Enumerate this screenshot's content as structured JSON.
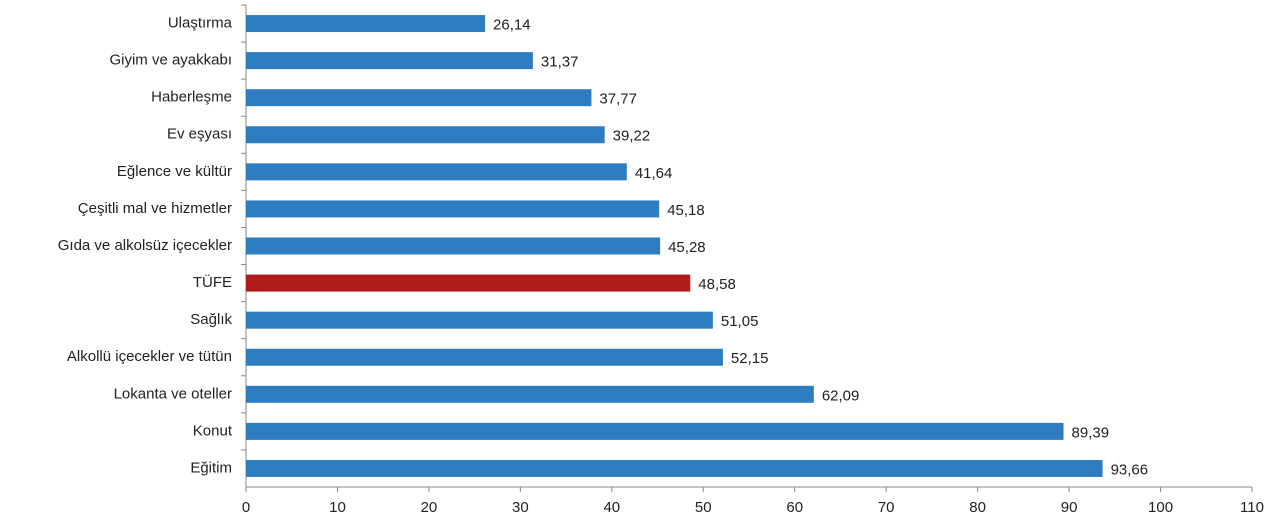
{
  "chart_data": {
    "type": "bar",
    "orientation": "horizontal",
    "categories": [
      "Ulaştırma",
      "Giyim ve ayakkabı",
      "Haberleşme",
      "Ev eşyası",
      "Eğlence ve kültür",
      "Çeşitli mal ve hizmetler",
      "Gıda ve alkolsüz içecekler",
      "TÜFE",
      "Sağlık",
      "Alkollü içecekler ve tütün",
      "Lokanta ve oteller",
      "Konut",
      "Eğitim"
    ],
    "values": [
      26.14,
      31.37,
      37.77,
      39.22,
      41.64,
      45.18,
      45.28,
      48.58,
      51.05,
      52.15,
      62.09,
      89.39,
      93.66
    ],
    "value_labels": [
      "26,14",
      "31,37",
      "37,77",
      "39,22",
      "41,64",
      "45,18",
      "45,28",
      "48,58",
      "51,05",
      "52,15",
      "62,09",
      "89,39",
      "93,66"
    ],
    "colors": [
      "#2e7dc1",
      "#2e7dc1",
      "#2e7dc1",
      "#2e7dc1",
      "#2e7dc1",
      "#2e7dc1",
      "#2e7dc1",
      "#b01c1c",
      "#2e7dc1",
      "#2e7dc1",
      "#2e7dc1",
      "#2e7dc1",
      "#2e7dc1"
    ],
    "xlim": [
      0,
      110
    ],
    "xticks": [
      0,
      10,
      20,
      30,
      40,
      50,
      60,
      70,
      80,
      90,
      100,
      110
    ]
  }
}
